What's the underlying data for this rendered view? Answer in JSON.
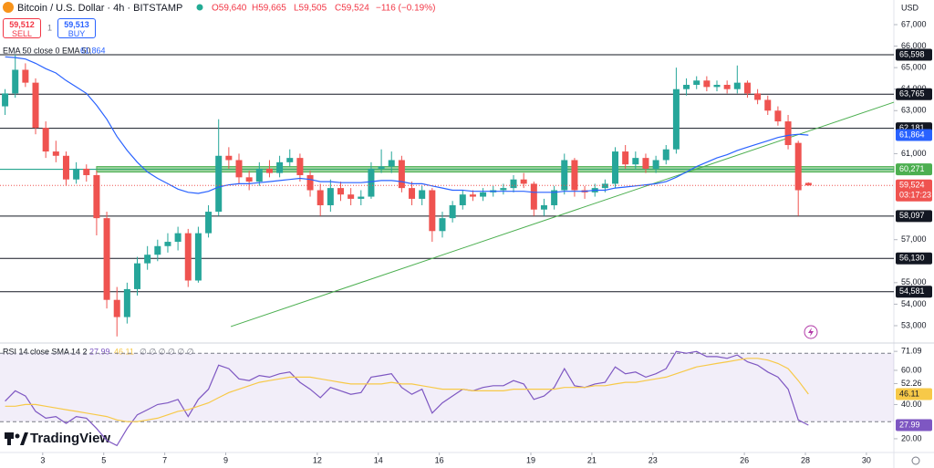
{
  "header": {
    "symbol": "Bitcoin / U.S. Dollar · 4h · BITSTAMP",
    "open": "O59,640",
    "high": "H59,665",
    "low": "L59,505",
    "close": "C59,524",
    "change": "−116 (−0.19%)",
    "sell_price": "59,512",
    "sell": "SELL",
    "spread": "1",
    "buy_price": "59,513",
    "buy": "BUY",
    "logo": "TradingView"
  },
  "chart_data": [
    {
      "type": "candlestick",
      "currency": "USD",
      "up_color": "#26a69a",
      "down_color": "#ef5350",
      "xlim": [
        -0.5,
        87.4
      ],
      "ylim": [
        52236,
        68145
      ],
      "xticks": [
        {
          "value": 3.7,
          "label": "3"
        },
        {
          "value": 9.7,
          "label": "5"
        },
        {
          "value": 15.7,
          "label": "7"
        },
        {
          "value": 21.7,
          "label": "9"
        },
        {
          "value": 30.7,
          "label": "12"
        },
        {
          "value": 36.7,
          "label": "14"
        },
        {
          "value": 42.7,
          "label": "16"
        },
        {
          "value": 51.7,
          "label": "19"
        },
        {
          "value": 57.7,
          "label": "21"
        },
        {
          "value": 63.7,
          "label": "23"
        },
        {
          "value": 72.7,
          "label": "26"
        },
        {
          "value": 78.7,
          "label": "28"
        },
        {
          "value": 84.7,
          "label": "30"
        }
      ],
      "yticks": [
        {
          "value": 67000,
          "label": "67,000"
        },
        {
          "value": 66000,
          "label": "66,000"
        },
        {
          "value": 65000,
          "label": "65,000"
        },
        {
          "value": 64000,
          "label": "64,000"
        },
        {
          "value": 63000,
          "label": "63,000"
        },
        {
          "value": 61000,
          "label": "61,000"
        },
        {
          "value": 57000,
          "label": "57,000"
        },
        {
          "value": 55000,
          "label": "55,000"
        },
        {
          "value": 54000,
          "label": "54,000"
        },
        {
          "value": 53000,
          "label": "53,000"
        }
      ],
      "candles": [
        [
          63200,
          64000,
          62800,
          63800
        ],
        [
          63800,
          65600,
          63600,
          64900
        ],
        [
          64900,
          65200,
          64100,
          64300
        ],
        [
          64300,
          64500,
          61900,
          62200
        ],
        [
          62200,
          62500,
          60800,
          61100
        ],
        [
          61100,
          61600,
          60600,
          60900
        ],
        [
          60900,
          61100,
          59500,
          59800
        ],
        [
          59800,
          60600,
          59600,
          60300
        ],
        [
          60300,
          60500,
          59700,
          60000
        ],
        [
          60000,
          60200,
          57200,
          58000
        ],
        [
          58000,
          58300,
          53800,
          54200
        ],
        [
          54200,
          54800,
          52500,
          53400
        ],
        [
          53400,
          55000,
          53100,
          54700
        ],
        [
          54700,
          56200,
          54400,
          55900
        ],
        [
          55900,
          56700,
          55600,
          56300
        ],
        [
          56300,
          57000,
          56000,
          56700
        ],
        [
          56700,
          57300,
          56400,
          56900
        ],
        [
          56900,
          57600,
          56500,
          57300
        ],
        [
          57300,
          57500,
          54800,
          55100
        ],
        [
          55100,
          57600,
          55000,
          57300
        ],
        [
          57300,
          58600,
          57100,
          58300
        ],
        [
          58300,
          62600,
          58100,
          60900
        ],
        [
          60900,
          61300,
          60300,
          60700
        ],
        [
          60700,
          61000,
          59600,
          59900
        ],
        [
          59900,
          60200,
          59300,
          59700
        ],
        [
          59700,
          60600,
          59500,
          60300
        ],
        [
          60300,
          60700,
          59900,
          60100
        ],
        [
          60100,
          60900,
          59900,
          60600
        ],
        [
          60600,
          61200,
          60400,
          60800
        ],
        [
          60800,
          61000,
          59700,
          60000
        ],
        [
          60000,
          60200,
          59000,
          59300
        ],
        [
          59300,
          59600,
          58100,
          58600
        ],
        [
          58600,
          59800,
          58300,
          59400
        ],
        [
          59400,
          59700,
          58800,
          59100
        ],
        [
          59100,
          59400,
          58600,
          58900
        ],
        [
          58900,
          59300,
          58600,
          59000
        ],
        [
          59000,
          60600,
          58900,
          60300
        ],
        [
          60300,
          61200,
          60100,
          60400
        ],
        [
          60400,
          61100,
          60100,
          60700
        ],
        [
          60700,
          60900,
          59200,
          59400
        ],
        [
          59400,
          59700,
          58600,
          58900
        ],
        [
          58900,
          59500,
          58600,
          59300
        ],
        [
          59300,
          59400,
          56900,
          57400
        ],
        [
          57400,
          58300,
          57100,
          58000
        ],
        [
          58000,
          58800,
          57800,
          58600
        ],
        [
          58600,
          59300,
          58400,
          59100
        ],
        [
          59100,
          59300,
          58800,
          59000
        ],
        [
          59000,
          59400,
          58800,
          59200
        ],
        [
          59200,
          59500,
          59000,
          59300
        ],
        [
          59300,
          59600,
          59100,
          59400
        ],
        [
          59400,
          60000,
          59200,
          59800
        ],
        [
          59800,
          60100,
          59400,
          59600
        ],
        [
          59600,
          59700,
          58100,
          58400
        ],
        [
          58400,
          58900,
          58100,
          58600
        ],
        [
          58600,
          59500,
          58400,
          59300
        ],
        [
          59300,
          61000,
          59100,
          60700
        ],
        [
          60700,
          60800,
          59000,
          59300
        ],
        [
          59300,
          59500,
          58900,
          59200
        ],
        [
          59200,
          59600,
          59000,
          59400
        ],
        [
          59400,
          59800,
          59200,
          59600
        ],
        [
          59600,
          61300,
          59400,
          61100
        ],
        [
          61100,
          61400,
          60300,
          60500
        ],
        [
          60500,
          61100,
          60300,
          60800
        ],
        [
          60800,
          61000,
          60100,
          60300
        ],
        [
          60300,
          60900,
          60100,
          60700
        ],
        [
          60700,
          61400,
          60500,
          61200
        ],
        [
          61200,
          65000,
          61000,
          64000
        ],
        [
          64000,
          64500,
          63700,
          64200
        ],
        [
          64200,
          64600,
          64000,
          64400
        ],
        [
          64400,
          64600,
          63900,
          64100
        ],
        [
          64100,
          64400,
          63900,
          64200
        ],
        [
          64200,
          64400,
          63800,
          64000
        ],
        [
          64000,
          65100,
          63800,
          64300
        ],
        [
          64300,
          64400,
          63600,
          63800
        ],
        [
          63800,
          64000,
          63300,
          63500
        ],
        [
          63500,
          63700,
          62800,
          63000
        ],
        [
          63000,
          63200,
          62300,
          62500
        ],
        [
          62500,
          62800,
          61200,
          61400
        ],
        [
          61500,
          61600,
          58100,
          59300
        ],
        [
          59640,
          59665,
          59505,
          59524
        ]
      ],
      "last_label": "59,524",
      "countdown": "03:17:23",
      "ema": {
        "name": "EMA 50 close 0 EMA 50",
        "color": "#2962ff",
        "value_label": "61,864",
        "values": [
          65500,
          65470,
          65400,
          65200,
          64950,
          64750,
          64400,
          64100,
          63800,
          63250,
          62600,
          61800,
          61150,
          60600,
          60150,
          59850,
          59600,
          59350,
          59200,
          59150,
          59250,
          59450,
          59550,
          59600,
          59600,
          59650,
          59700,
          59750,
          59800,
          59850,
          59800,
          59700,
          59700,
          59650,
          59650,
          59650,
          59700,
          59750,
          59750,
          59700,
          59600,
          59600,
          59500,
          59400,
          59300,
          59300,
          59250,
          59250,
          59250,
          59250,
          59250,
          59250,
          59200,
          59200,
          59200,
          59250,
          59250,
          59250,
          59300,
          59300,
          59400,
          59450,
          59500,
          59550,
          59600,
          59700,
          59900,
          60150,
          60400,
          60600,
          60800,
          60950,
          61150,
          61300,
          61450,
          61600,
          61750,
          61850,
          61900,
          61864
        ]
      },
      "levels": [
        {
          "value": 65598,
          "label": "65,598"
        },
        {
          "value": 63765,
          "label": "63,765"
        },
        {
          "value": 62181,
          "label": "62,181"
        },
        {
          "value": 58097,
          "label": "58,097"
        },
        {
          "value": 56130,
          "label": "56,130"
        },
        {
          "value": 54581,
          "label": "54,581"
        }
      ],
      "zone": {
        "value": 60271,
        "label": "60,271",
        "color": "#4caf50"
      },
      "trendline": {
        "color": "#4caf50",
        "x": [
          22.2,
          87.4
        ],
        "y": [
          52960,
          63390
        ]
      }
    },
    {
      "type": "line",
      "title": "RSI 14 close SMA 14 2",
      "extra": "∅ ∅ ∅ ∅ ∅ ∅",
      "ylim": [
        12.5,
        74.9
      ],
      "band": [
        30,
        70
      ],
      "yticks": [
        71.09,
        {
          "value": 60,
          "label": "60.00"
        },
        52.26,
        {
          "value": 40,
          "label": "40.00"
        },
        {
          "value": 20,
          "label": "20.00"
        }
      ],
      "series": [
        {
          "color": "#7e57c2",
          "values": [
            42,
            48,
            45,
            36,
            32,
            33,
            29,
            33,
            32,
            26,
            19,
            16,
            26,
            34,
            37,
            40,
            41,
            43,
            33,
            43,
            49,
            63,
            61,
            55,
            54,
            57,
            56,
            58,
            59,
            53,
            49,
            44,
            50,
            48,
            46,
            47,
            56,
            57,
            58,
            50,
            46,
            49,
            35,
            41,
            45,
            49,
            48,
            50,
            51,
            51,
            54,
            52,
            43,
            45,
            50,
            61,
            51,
            50,
            52,
            53,
            62,
            58,
            59,
            56,
            58,
            61,
            71,
            70,
            71,
            68,
            68,
            67,
            69,
            65,
            63,
            59,
            56,
            49,
            31,
            27.99
          ]
        },
        {
          "color": "#f7c948",
          "values": [
            39,
            39,
            40,
            40,
            39,
            38,
            37,
            36,
            35,
            34,
            33,
            31,
            30,
            30,
            31,
            32,
            34,
            36,
            37,
            39,
            41,
            44,
            47,
            49,
            51,
            53,
            54,
            55,
            56,
            56,
            56,
            55,
            54,
            53,
            52,
            52,
            52,
            52,
            53,
            52,
            52,
            51,
            50,
            49,
            49,
            49,
            48,
            48,
            48,
            48,
            49,
            49,
            49,
            49,
            49,
            50,
            50,
            50,
            51,
            51,
            52,
            53,
            53,
            54,
            55,
            56,
            58,
            60,
            62,
            63,
            64,
            65,
            66,
            67,
            67,
            66,
            64,
            61,
            54,
            46.11
          ]
        }
      ]
    }
  ]
}
